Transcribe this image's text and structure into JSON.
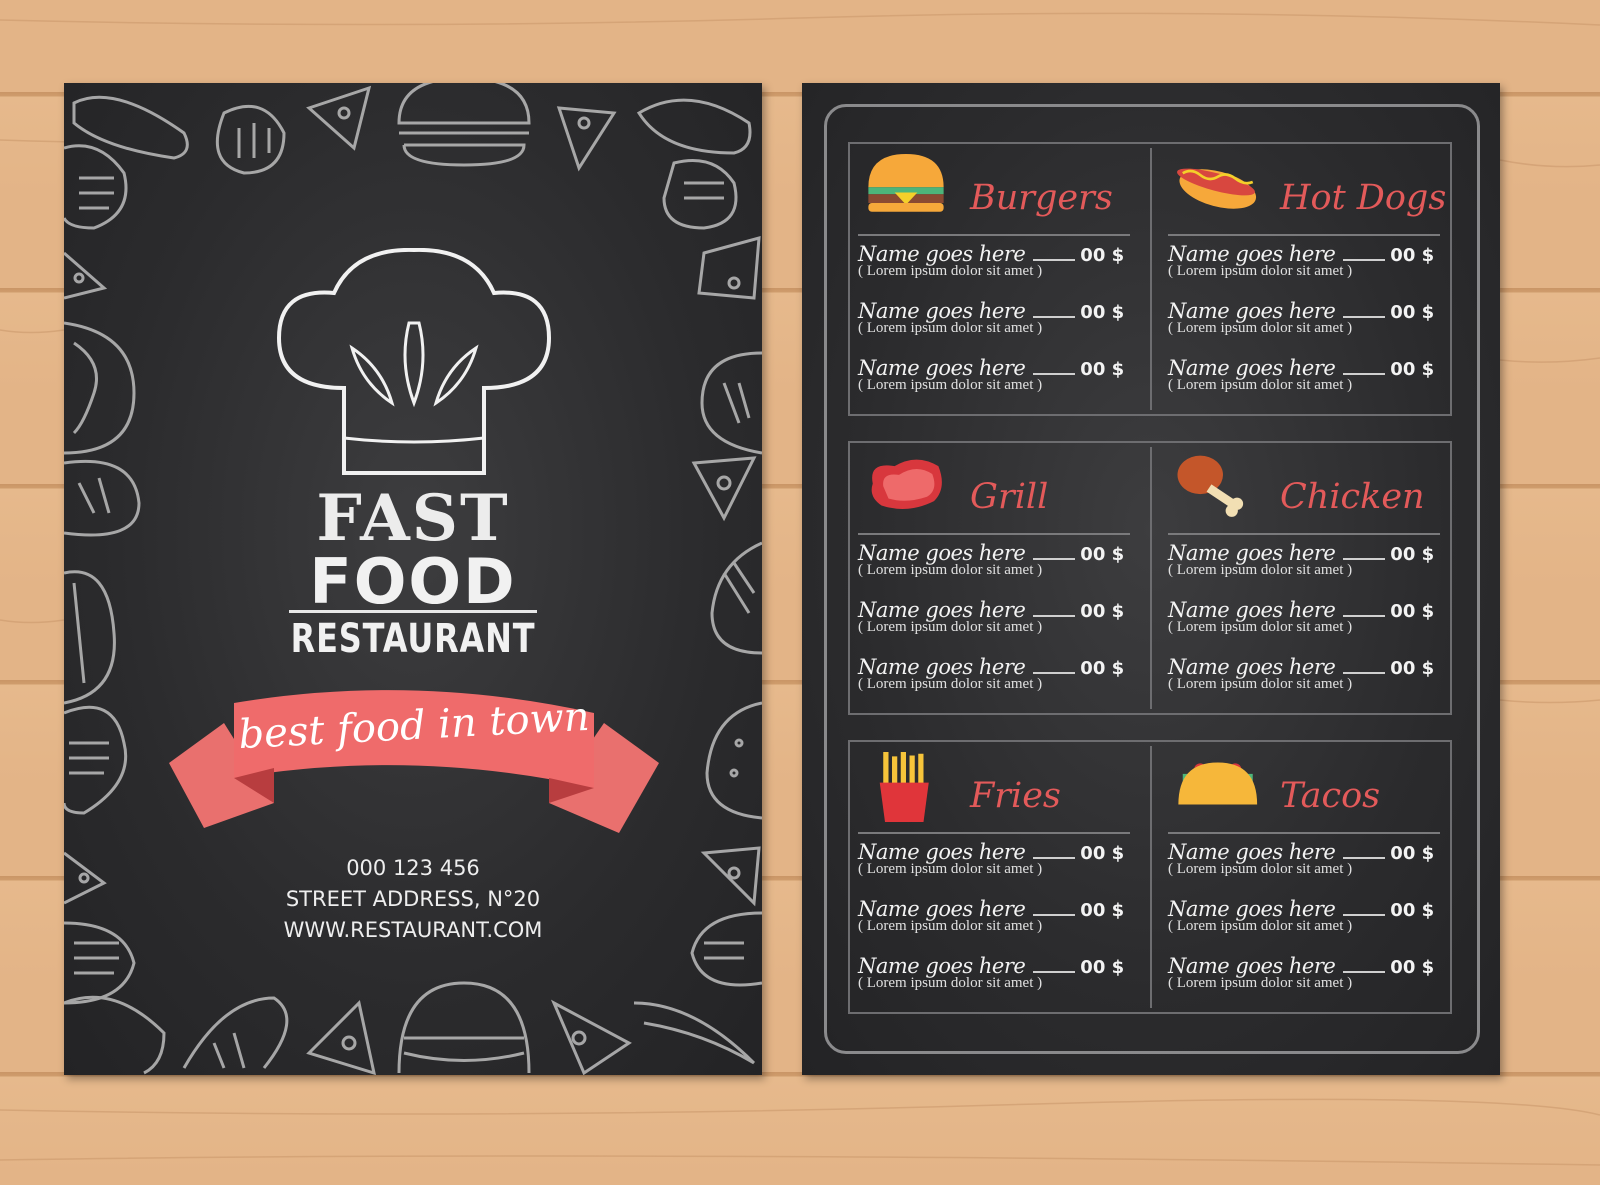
{
  "left": {
    "brand_line1": "FAST",
    "brand_line2": "FOOD",
    "brand_line3": "RESTAURANT",
    "tagline": "best food in town",
    "phone": "000 123 456",
    "address": "STREET ADDRESS, N°20",
    "website": "WWW.RESTAURANT.COM"
  },
  "colors": {
    "accent": "#e35a5a",
    "board": "#2b2b2d",
    "wood": "#e3b487",
    "ribbon": "#ef6b6b"
  },
  "sections": [
    {
      "title": "Burgers",
      "icon": "burger-icon",
      "items": [
        {
          "name": "Name goes here",
          "price": "00 $",
          "desc": "( Lorem ipsum dolor sit amet )"
        },
        {
          "name": "Name goes here",
          "price": "00 $",
          "desc": "( Lorem ipsum dolor sit amet )"
        },
        {
          "name": "Name goes here",
          "price": "00 $",
          "desc": "( Lorem ipsum dolor sit amet )"
        }
      ]
    },
    {
      "title": "Hot Dogs",
      "icon": "hot-dog-icon",
      "items": [
        {
          "name": "Name goes here",
          "price": "00 $",
          "desc": "( Lorem ipsum dolor sit amet )"
        },
        {
          "name": "Name goes here",
          "price": "00 $",
          "desc": "( Lorem ipsum dolor sit amet )"
        },
        {
          "name": "Name goes here",
          "price": "00 $",
          "desc": "( Lorem ipsum dolor sit amet )"
        }
      ]
    },
    {
      "title": "Grill",
      "icon": "steak-icon",
      "items": [
        {
          "name": "Name goes here",
          "price": "00 $",
          "desc": "( Lorem ipsum dolor sit amet )"
        },
        {
          "name": "Name goes here",
          "price": "00 $",
          "desc": "( Lorem ipsum dolor sit amet )"
        },
        {
          "name": "Name goes here",
          "price": "00 $",
          "desc": "( Lorem ipsum dolor sit amet )"
        }
      ]
    },
    {
      "title": "Chicken",
      "icon": "chicken-leg-icon",
      "items": [
        {
          "name": "Name goes here",
          "price": "00 $",
          "desc": "( Lorem ipsum dolor sit amet )"
        },
        {
          "name": "Name goes here",
          "price": "00 $",
          "desc": "( Lorem ipsum dolor sit amet )"
        },
        {
          "name": "Name goes here",
          "price": "00 $",
          "desc": "( Lorem ipsum dolor sit amet )"
        }
      ]
    },
    {
      "title": "Fries",
      "icon": "fries-icon",
      "items": [
        {
          "name": "Name goes here",
          "price": "00 $",
          "desc": "( Lorem ipsum dolor sit amet )"
        },
        {
          "name": "Name goes here",
          "price": "00 $",
          "desc": "( Lorem ipsum dolor sit amet )"
        },
        {
          "name": "Name goes here",
          "price": "00 $",
          "desc": "( Lorem ipsum dolor sit amet )"
        }
      ]
    },
    {
      "title": "Tacos",
      "icon": "taco-icon",
      "items": [
        {
          "name": "Name goes here",
          "price": "00 $",
          "desc": "( Lorem ipsum dolor sit amet )"
        },
        {
          "name": "Name goes here",
          "price": "00 $",
          "desc": "( Lorem ipsum dolor sit amet )"
        },
        {
          "name": "Name goes here",
          "price": "00 $",
          "desc": "( Lorem ipsum dolor sit amet )"
        }
      ]
    }
  ]
}
